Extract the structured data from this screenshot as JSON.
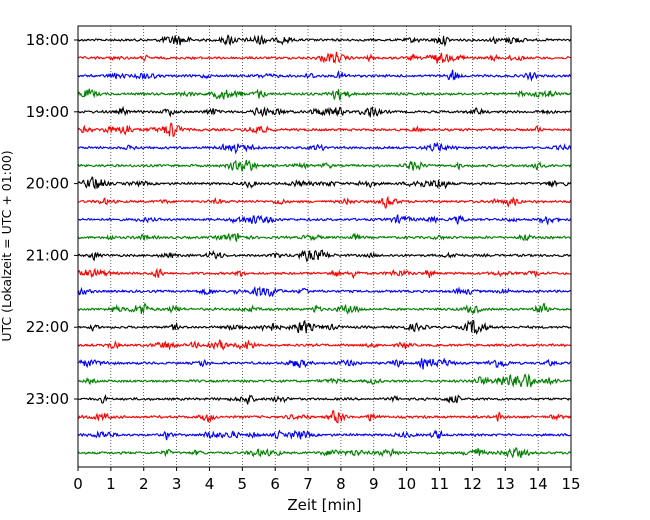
{
  "chart_data": {
    "type": "line",
    "title": "",
    "xlabel": "Zeit  [min]",
    "ylabel": "UTC (Lokalzeit = UTC + 01:00)",
    "xlim": [
      0,
      15
    ],
    "x_ticks": [
      "0",
      "1",
      "2",
      "3",
      "4",
      "5",
      "6",
      "7",
      "8",
      "9",
      "10",
      "11",
      "12",
      "13",
      "14",
      "15"
    ],
    "y_ticks": [
      "18:00",
      "19:00",
      "20:00",
      "21:00",
      "22:00",
      "23:00"
    ],
    "trace_start_times": [
      "18:00",
      "18:15",
      "18:30",
      "18:45",
      "19:00",
      "19:15",
      "19:30",
      "19:45",
      "20:00",
      "20:15",
      "20:30",
      "20:45",
      "21:00",
      "21:15",
      "21:30",
      "21:45",
      "22:00",
      "22:15",
      "22:30",
      "22:45",
      "23:00",
      "23:15",
      "23:30",
      "23:45"
    ],
    "trace_colors": [
      "#000000",
      "#ff0000",
      "#0000ff",
      "#008000"
    ],
    "grid": {
      "x": "dotted",
      "y": "none"
    },
    "legend": "none"
  }
}
